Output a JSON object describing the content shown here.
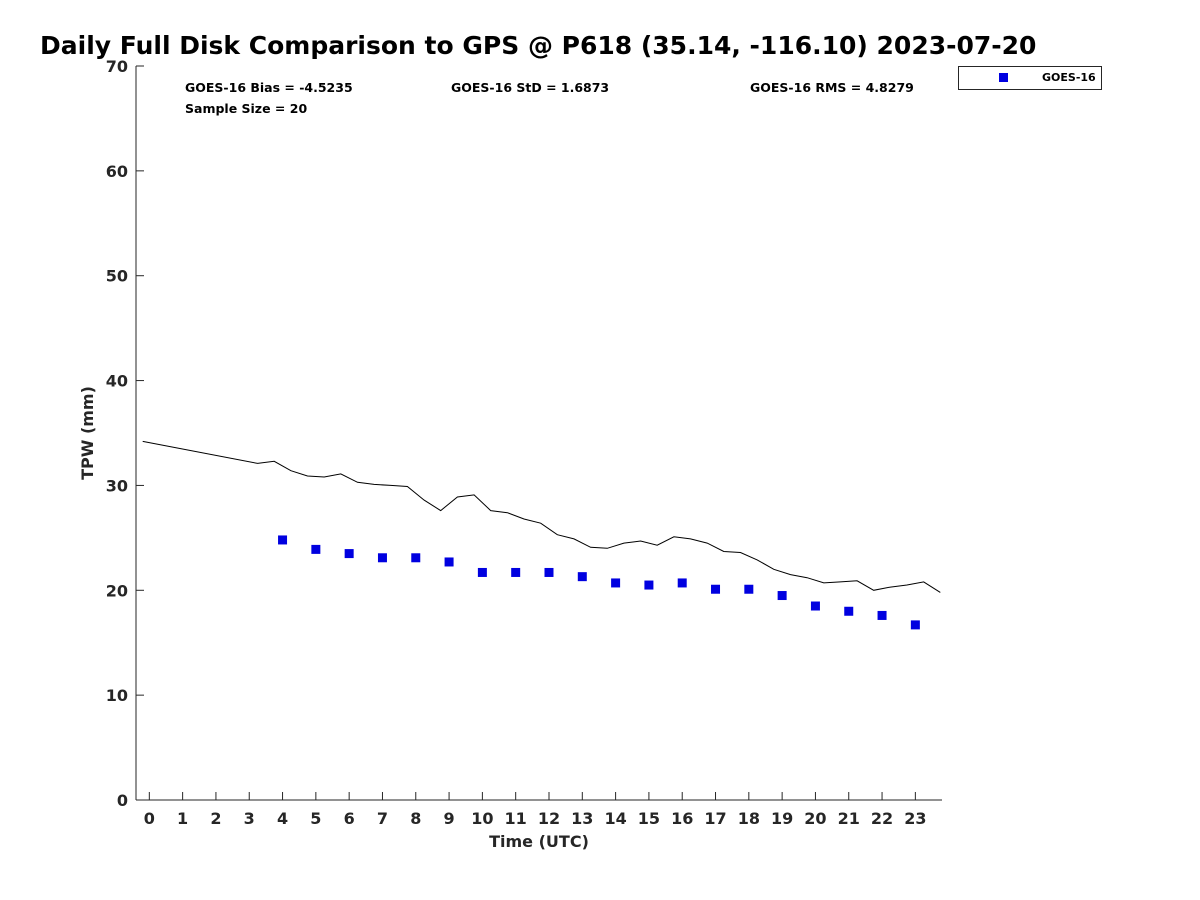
{
  "chart_data": {
    "type": "scatter",
    "title": "Daily Full Disk Comparison to GPS @ P618 (35.14, -116.10) 2023-07-20",
    "xlabel": "Time (UTC)",
    "ylabel": "TPW (mm)",
    "xlim": [
      -0.4,
      23.8
    ],
    "ylim": [
      0,
      70
    ],
    "x_ticks": [
      0,
      1,
      2,
      3,
      4,
      5,
      6,
      7,
      8,
      9,
      10,
      11,
      12,
      13,
      14,
      15,
      16,
      17,
      18,
      19,
      20,
      21,
      22,
      23
    ],
    "y_ticks": [
      0,
      10,
      20,
      30,
      40,
      50,
      60,
      70
    ],
    "grid": false,
    "legend_position": "top-right",
    "stats": [
      "GOES-16 Bias = -4.5235",
      "GOES-16 StD = 1.6873",
      "GOES-16 RMS = 4.8279",
      "Sample Size = 20"
    ],
    "series": [
      {
        "name": "GOES-16",
        "kind": "scatter",
        "marker": "square",
        "color": "#0000e0",
        "x": [
          4,
          5,
          6,
          7,
          8,
          9,
          10,
          11,
          12,
          13,
          14,
          15,
          16,
          17,
          18,
          19,
          20,
          21,
          22,
          23
        ],
        "y": [
          24.8,
          23.9,
          23.5,
          23.1,
          23.1,
          22.7,
          21.7,
          21.7,
          21.7,
          21.3,
          20.7,
          20.5,
          20.7,
          20.1,
          20.1,
          19.5,
          18.5,
          18.0,
          17.6,
          16.7
        ]
      },
      {
        "kind": "line",
        "color": "#000000",
        "x": [
          -0.2,
          3.25,
          3.75,
          4.25,
          4.75,
          5.25,
          5.75,
          6.25,
          6.75,
          7.25,
          7.75,
          8.25,
          8.75,
          9.25,
          9.75,
          10.25,
          10.75,
          11.25,
          11.75,
          12.25,
          12.75,
          13.25,
          13.75,
          14.25,
          14.75,
          15.25,
          15.75,
          16.25,
          16.75,
          17.25,
          17.75,
          18.25,
          18.75,
          19.25,
          19.75,
          20.25,
          20.75,
          21.25,
          21.75,
          22.25,
          22.75,
          23.25,
          23.75
        ],
        "y": [
          34.2,
          32.1,
          32.3,
          31.4,
          30.9,
          30.8,
          31.1,
          30.3,
          30.1,
          30.0,
          29.9,
          28.6,
          27.6,
          28.9,
          29.1,
          27.6,
          27.4,
          26.8,
          26.4,
          25.3,
          24.9,
          24.1,
          24.0,
          24.5,
          24.7,
          24.3,
          25.1,
          24.9,
          24.5,
          23.7,
          23.6,
          22.9,
          22.0,
          21.5,
          21.2,
          20.7,
          20.8,
          20.9,
          20.0,
          20.3,
          20.5,
          20.8,
          19.8
        ]
      }
    ]
  }
}
